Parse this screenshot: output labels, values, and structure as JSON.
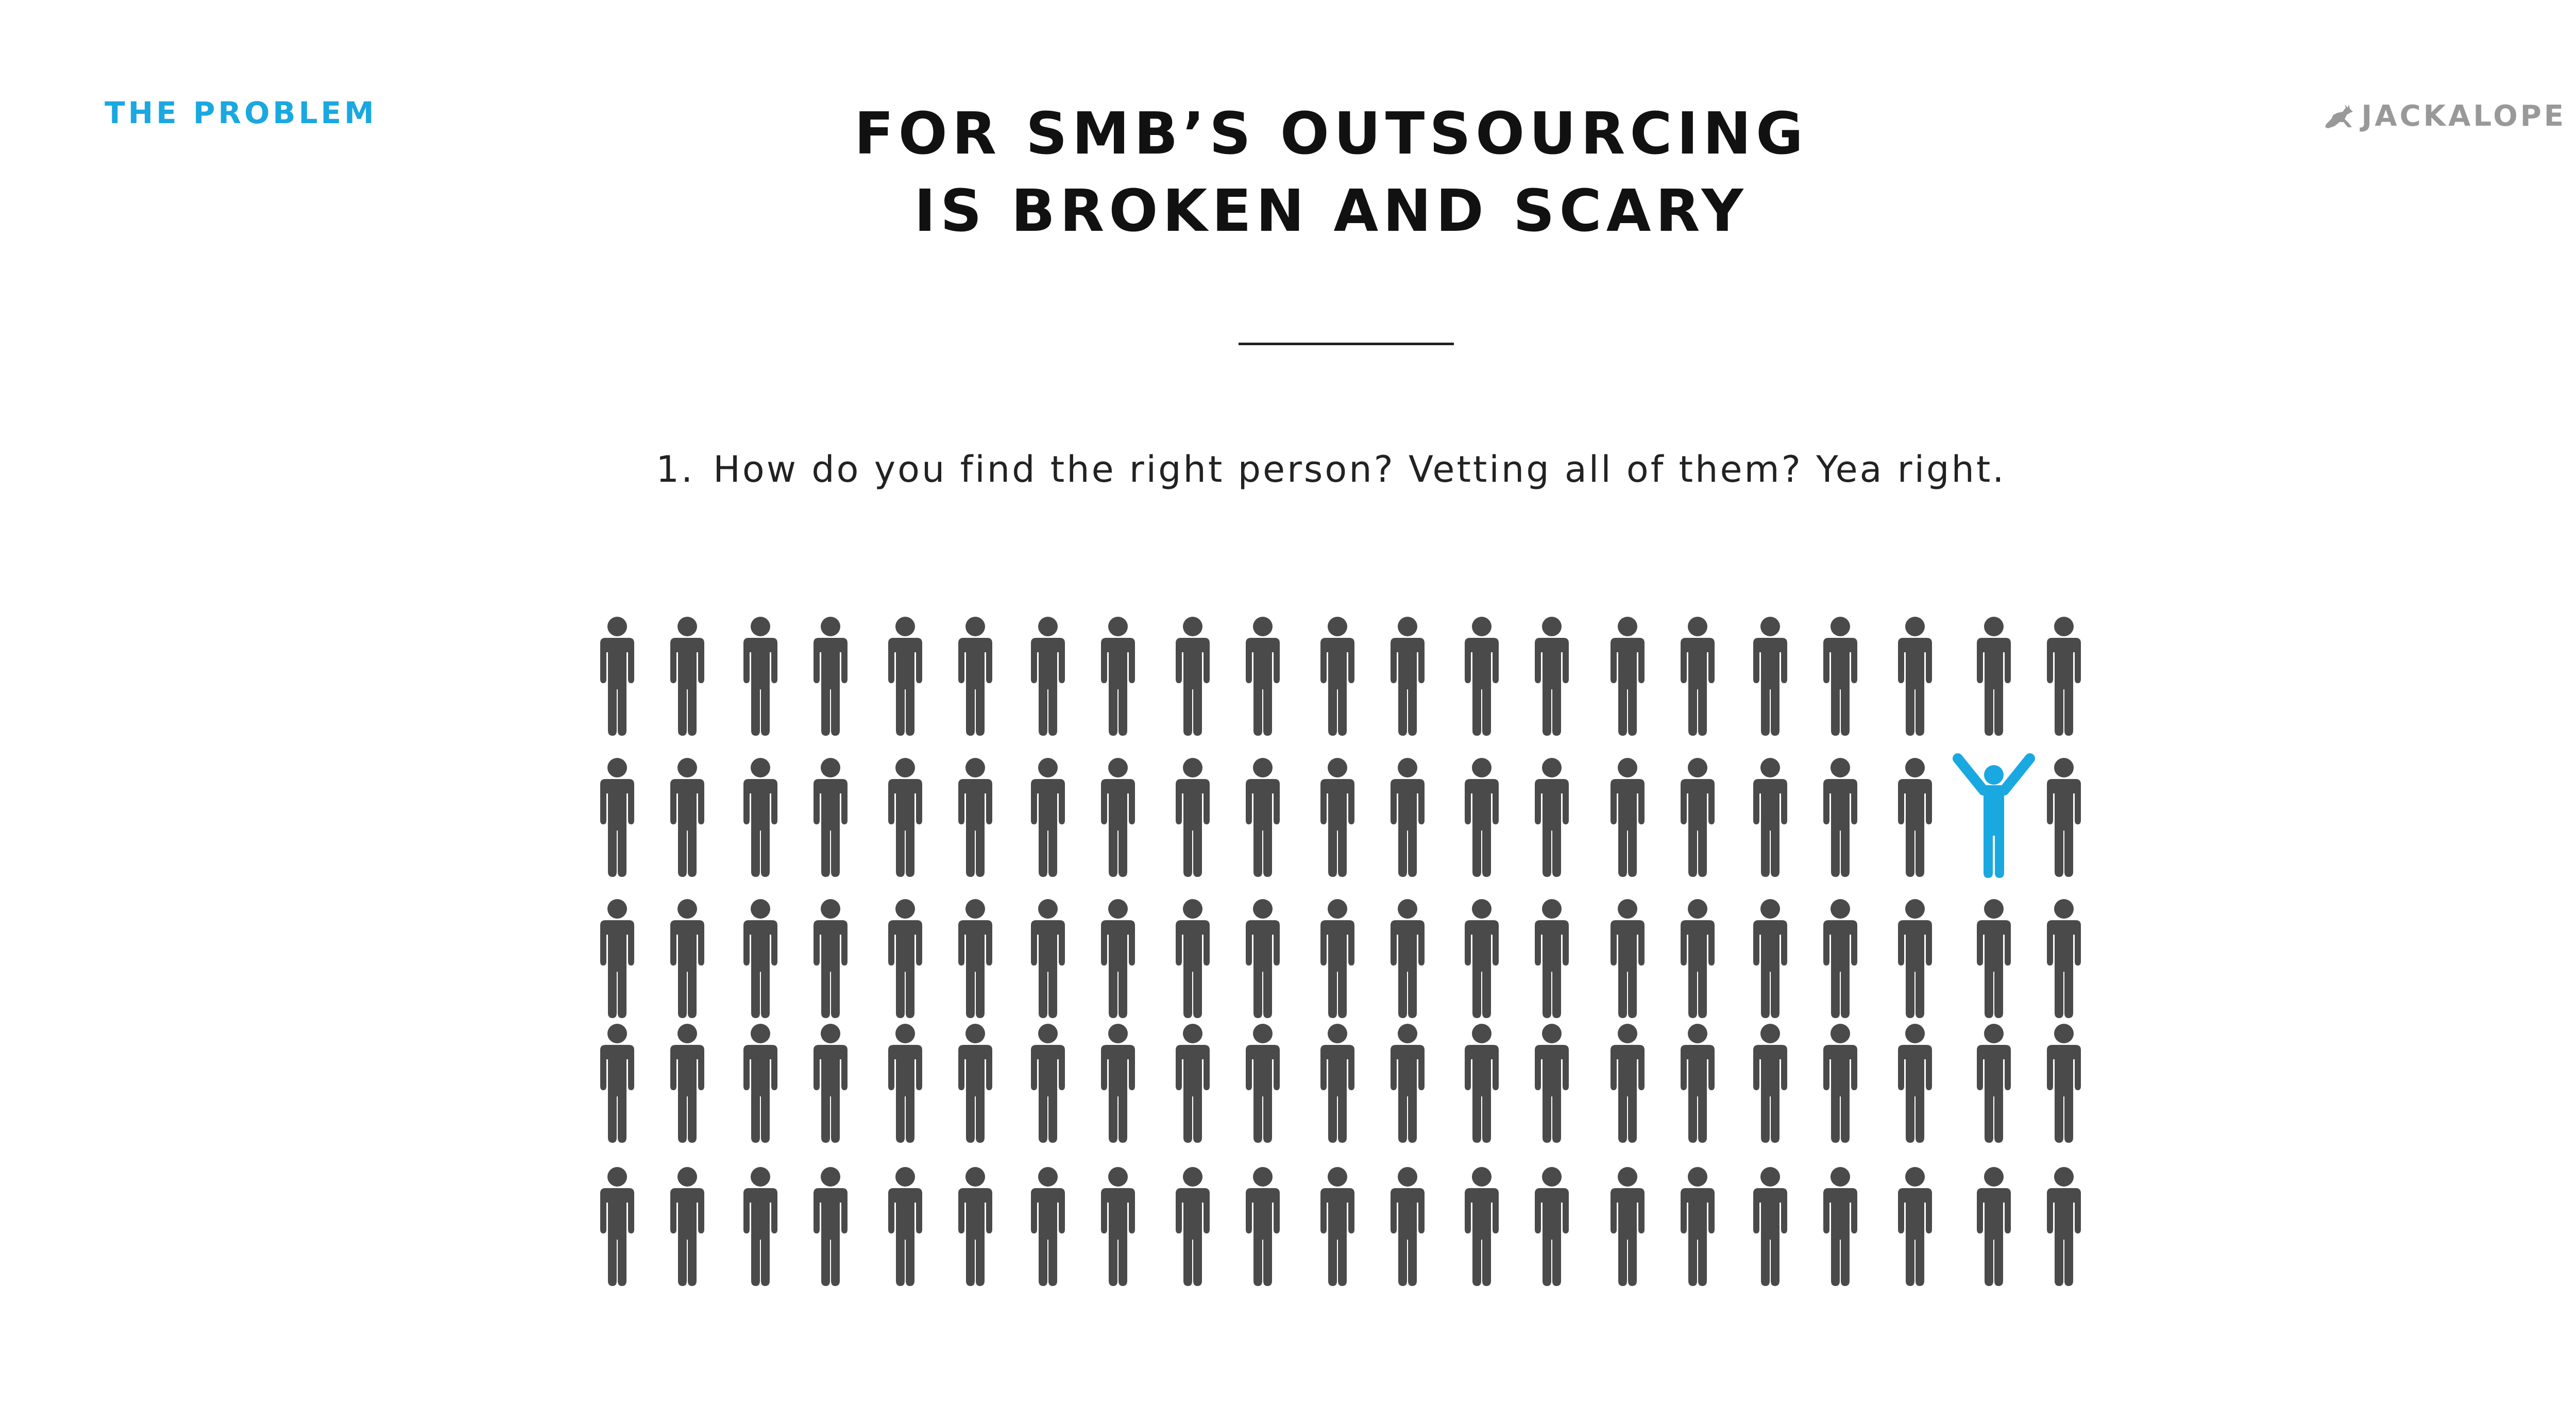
{
  "header": {
    "section_label": "THE PROBLEM",
    "brand_name": "JACKALOPE",
    "brand_icon": "jackalope-logo-icon"
  },
  "title": {
    "line1": "FOR SMB’S OUTSOURCING",
    "line2": "IS BROKEN AND SCARY"
  },
  "point": {
    "number": "1.",
    "text": "How do you find the right person? Vetting all of them? Yea right."
  },
  "crowd": {
    "rows": 5,
    "columns": 21,
    "highlight": {
      "row": 2,
      "column": 20
    },
    "icon": "person-icon",
    "highlight_icon": "person-arms-raised-icon",
    "figure_color": "#4a4a4a",
    "highlight_color": "#1aa8e0"
  },
  "colors": {
    "accent": "#1aa8e0",
    "text": "#111111",
    "brand": "#999999"
  }
}
